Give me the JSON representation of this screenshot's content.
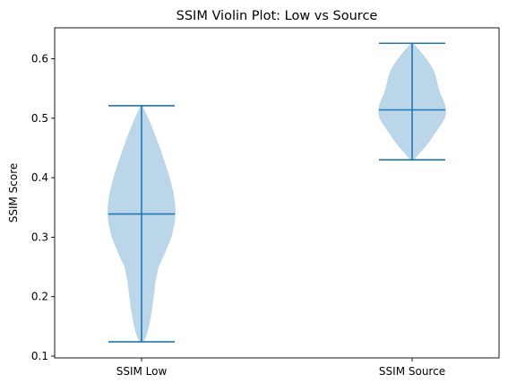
{
  "chart_data": {
    "type": "violin",
    "title": "SSIM Violin Plot: Low vs Source",
    "xlabel": "",
    "ylabel": "SSIM Score",
    "categories": [
      "SSIM Low",
      "SSIM Source"
    ],
    "ylim": [
      0.097,
      0.652
    ],
    "yticks": [
      0.1,
      0.2,
      0.3,
      0.4,
      0.5,
      0.6
    ],
    "ytick_labels": [
      "0.1",
      "0.2",
      "0.3",
      "0.4",
      "0.5",
      "0.6"
    ],
    "grid": false,
    "legend": "none",
    "colors": {
      "body_fill": "#1f77b4",
      "body_alpha": 0.3,
      "lines": "#1f77b4",
      "axes": "#000000"
    },
    "violins": [
      {
        "category": "SSIM Low",
        "min": 0.124,
        "max": 0.521,
        "mean": 0.339,
        "density_profile": [
          [
            0.124,
            0.05
          ],
          [
            0.13,
            0.12
          ],
          [
            0.15,
            0.22
          ],
          [
            0.175,
            0.3
          ],
          [
            0.2,
            0.36
          ],
          [
            0.225,
            0.41
          ],
          [
            0.25,
            0.5
          ],
          [
            0.275,
            0.7
          ],
          [
            0.3,
            0.88
          ],
          [
            0.325,
            0.98
          ],
          [
            0.34,
            1.0
          ],
          [
            0.355,
            0.99
          ],
          [
            0.375,
            0.94
          ],
          [
            0.4,
            0.83
          ],
          [
            0.425,
            0.69
          ],
          [
            0.45,
            0.54
          ],
          [
            0.475,
            0.38
          ],
          [
            0.5,
            0.2
          ],
          [
            0.512,
            0.1
          ],
          [
            0.521,
            0.03
          ]
        ]
      },
      {
        "category": "SSIM Source",
        "min": 0.43,
        "max": 0.626,
        "mean": 0.514,
        "density_profile": [
          [
            0.43,
            0.06
          ],
          [
            0.44,
            0.2
          ],
          [
            0.45,
            0.36
          ],
          [
            0.46,
            0.5
          ],
          [
            0.47,
            0.62
          ],
          [
            0.48,
            0.74
          ],
          [
            0.49,
            0.86
          ],
          [
            0.5,
            0.96
          ],
          [
            0.51,
            1.0
          ],
          [
            0.52,
            0.98
          ],
          [
            0.53,
            0.92
          ],
          [
            0.54,
            0.84
          ],
          [
            0.55,
            0.78
          ],
          [
            0.56,
            0.74
          ],
          [
            0.57,
            0.7
          ],
          [
            0.58,
            0.64
          ],
          [
            0.59,
            0.54
          ],
          [
            0.6,
            0.42
          ],
          [
            0.61,
            0.28
          ],
          [
            0.62,
            0.13
          ],
          [
            0.626,
            0.03
          ]
        ]
      }
    ]
  }
}
